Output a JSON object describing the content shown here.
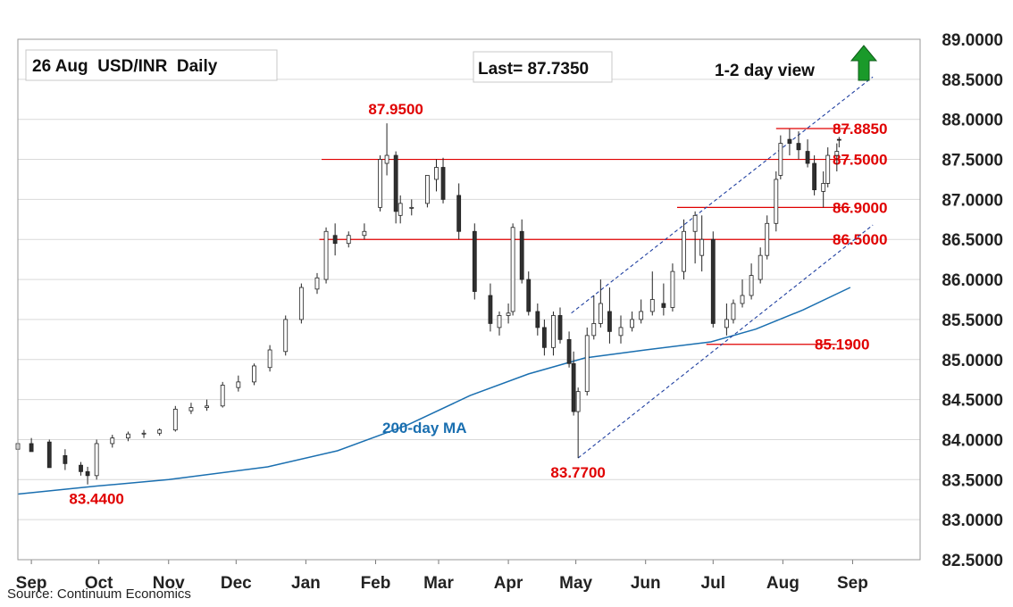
{
  "source": "Source: Continuum Economics",
  "colors": {
    "level_lines": "#e00000",
    "ma_line": "#1a6fb0",
    "channel": "#1f3fa0",
    "candle_up": "#ffffff",
    "candle_down": "#2f2f2f",
    "grid": "#d9d9d9",
    "arrow": "#1a9a2a"
  },
  "chart_data": {
    "type": "candlestick",
    "title": "26 Aug  USD/INR  Daily",
    "last_label": "Last= 87.7350",
    "view_label": "1-2 day view",
    "view_direction": "up-arrow-icon",
    "ma_label": "200-day MA",
    "ylim": [
      82.5,
      89.0
    ],
    "y_ticks": [
      "89.0000",
      "88.5000",
      "88.0000",
      "87.5000",
      "87.0000",
      "86.5000",
      "86.0000",
      "85.5000",
      "85.0000",
      "84.5000",
      "84.0000",
      "83.5000",
      "83.0000",
      "82.5000"
    ],
    "y_tick_values": [
      89.0,
      88.5,
      88.0,
      87.5,
      87.0,
      86.5,
      86.0,
      85.5,
      85.0,
      84.5,
      84.0,
      83.5,
      83.0,
      82.5
    ],
    "x_ticks": [
      "Sep",
      "Oct",
      "Nov",
      "Dec",
      "Jan",
      "Feb",
      "Mar",
      "Apr",
      "May",
      "Jun",
      "Jul",
      "Aug",
      "Sep"
    ],
    "x_tick_dates": [
      "2024-09-01",
      "2024-10-01",
      "2024-11-01",
      "2024-12-01",
      "2025-01-01",
      "2025-02-01",
      "2025-03-01",
      "2025-04-01",
      "2025-05-01",
      "2025-06-01",
      "2025-07-01",
      "2025-08-01",
      "2025-09-01"
    ],
    "x_range": [
      "2024-08-26",
      "2025-10-01"
    ],
    "levels": [
      {
        "label": "87.8850",
        "value": 87.885,
        "from": "2025-07-29",
        "to": "2025-08-31"
      },
      {
        "label": "87.5000",
        "value": 87.5,
        "from": "2025-01-08",
        "to": "2025-08-31"
      },
      {
        "label": "86.9000",
        "value": 86.9,
        "from": "2025-06-15",
        "to": "2025-08-31"
      },
      {
        "label": "86.5000",
        "value": 86.5,
        "from": "2025-01-07",
        "to": "2025-08-31"
      },
      {
        "label": "85.1900",
        "value": 85.19,
        "from": "2025-06-28",
        "to": "2025-08-25"
      }
    ],
    "annotations": [
      {
        "label": "87.9500",
        "date": "2025-02-10",
        "value": 87.95,
        "pos": "above"
      },
      {
        "label": "83.7700",
        "date": "2025-05-02",
        "value": 83.77,
        "pos": "below"
      },
      {
        "label": "83.4400",
        "date": "2024-09-30",
        "value": 83.44,
        "pos": "below"
      }
    ],
    "channel": {
      "upper": [
        {
          "date": "2025-04-29",
          "value": 85.58
        },
        {
          "date": "2025-09-10",
          "value": 88.53
        }
      ],
      "lower": [
        {
          "date": "2025-05-02",
          "value": 83.77
        },
        {
          "date": "2025-09-10",
          "value": 86.68
        }
      ]
    },
    "ma_200": {
      "dates": [
        "2024-08-26",
        "2024-09-30",
        "2024-11-01",
        "2024-12-15",
        "2025-01-15",
        "2025-02-15",
        "2025-03-15",
        "2025-04-10",
        "2025-05-05",
        "2025-06-01",
        "2025-06-30",
        "2025-07-20",
        "2025-08-10",
        "2025-08-31"
      ],
      "values": [
        83.32,
        83.42,
        83.5,
        83.66,
        83.86,
        84.18,
        84.55,
        84.82,
        85.02,
        85.12,
        85.22,
        85.38,
        85.62,
        85.9
      ]
    },
    "series": [
      {
        "dates": [
          "2024-08-26",
          "2024-09-01",
          "2024-09-09",
          "2024-09-16",
          "2024-09-23",
          "2024-09-26",
          "2024-09-30",
          "2024-10-07",
          "2024-10-14",
          "2024-10-21",
          "2024-10-28",
          "2024-11-04",
          "2024-11-11",
          "2024-11-18",
          "2024-11-25",
          "2024-12-02",
          "2024-12-09",
          "2024-12-16",
          "2024-12-23",
          "2024-12-30",
          "2025-01-06",
          "2025-01-10",
          "2025-01-14",
          "2025-01-20",
          "2025-01-27",
          "2025-02-03",
          "2025-02-06",
          "2025-02-10",
          "2025-02-12",
          "2025-02-17",
          "2025-02-24",
          "2025-02-28",
          "2025-03-03",
          "2025-03-10",
          "2025-03-17",
          "2025-03-24",
          "2025-03-28",
          "2025-04-01",
          "2025-04-03",
          "2025-04-07",
          "2025-04-10",
          "2025-04-14",
          "2025-04-17",
          "2025-04-21",
          "2025-04-24",
          "2025-04-28",
          "2025-04-30",
          "2025-05-02",
          "2025-05-06",
          "2025-05-09",
          "2025-05-12",
          "2025-05-16",
          "2025-05-21",
          "2025-05-26",
          "2025-05-30",
          "2025-06-04",
          "2025-06-09",
          "2025-06-13",
          "2025-06-18",
          "2025-06-23",
          "2025-06-26",
          "2025-07-01",
          "2025-07-07",
          "2025-07-10",
          "2025-07-14",
          "2025-07-18",
          "2025-07-22",
          "2025-07-25",
          "2025-07-29",
          "2025-07-31",
          "2025-08-04",
          "2025-08-08",
          "2025-08-12",
          "2025-08-15",
          "2025-08-19",
          "2025-08-21",
          "2025-08-25",
          "2025-08-26"
        ]
      },
      {
        "name": "open",
        "values": [
          83.88,
          83.95,
          83.97,
          83.8,
          83.68,
          83.6,
          83.55,
          83.95,
          84.02,
          84.07,
          84.08,
          84.12,
          84.36,
          84.4,
          84.42,
          84.65,
          84.72,
          84.9,
          85.1,
          85.5,
          85.88,
          86.0,
          86.55,
          86.45,
          86.55,
          86.9,
          87.45,
          87.55,
          86.8,
          86.9,
          86.95,
          87.25,
          87.4,
          87.05,
          86.6,
          85.8,
          85.4,
          85.55,
          85.6,
          86.6,
          86.0,
          85.6,
          85.4,
          85.15,
          85.55,
          85.25,
          84.95,
          84.35,
          84.6,
          85.3,
          85.45,
          85.6,
          85.3,
          85.4,
          85.5,
          85.6,
          85.7,
          85.65,
          86.1,
          86.6,
          86.3,
          86.5,
          85.4,
          85.5,
          85.7,
          85.8,
          86.0,
          86.3,
          86.7,
          87.3,
          87.75,
          87.7,
          87.6,
          87.45,
          87.1,
          87.2,
          87.55,
          87.75
        ]
      },
      {
        "name": "high",
        "values": [
          83.98,
          84.02,
          84.0,
          83.88,
          83.72,
          83.66,
          84.0,
          84.06,
          84.1,
          84.12,
          84.14,
          84.42,
          84.46,
          84.5,
          84.72,
          84.8,
          84.95,
          85.18,
          85.55,
          85.95,
          86.08,
          86.65,
          86.7,
          86.6,
          86.7,
          87.55,
          87.95,
          87.6,
          87.05,
          87.0,
          87.3,
          87.5,
          87.52,
          87.2,
          86.7,
          85.95,
          85.6,
          85.7,
          86.7,
          86.75,
          86.1,
          85.7,
          85.5,
          85.6,
          85.65,
          85.35,
          85.1,
          84.65,
          85.4,
          85.8,
          86.0,
          85.9,
          85.55,
          85.6,
          85.75,
          86.1,
          85.95,
          86.2,
          86.75,
          86.85,
          86.8,
          86.6,
          85.7,
          85.75,
          86.0,
          86.2,
          86.4,
          86.8,
          87.35,
          87.8,
          87.88,
          87.85,
          87.75,
          87.55,
          87.35,
          87.65,
          87.7,
          87.78
        ]
      },
      {
        "name": "low",
        "values": [
          83.82,
          83.88,
          83.75,
          83.62,
          83.55,
          83.44,
          83.5,
          83.9,
          83.98,
          84.02,
          84.05,
          84.1,
          84.32,
          84.36,
          84.4,
          84.6,
          84.68,
          84.85,
          85.05,
          85.45,
          85.82,
          85.95,
          86.3,
          86.4,
          86.5,
          86.85,
          87.3,
          86.7,
          86.7,
          86.8,
          86.9,
          87.1,
          86.95,
          86.5,
          85.75,
          85.35,
          85.3,
          85.45,
          85.55,
          85.95,
          85.55,
          85.3,
          85.05,
          85.05,
          85.2,
          84.9,
          84.3,
          83.77,
          84.55,
          85.25,
          85.4,
          85.2,
          85.2,
          85.35,
          85.45,
          85.55,
          85.55,
          85.6,
          86.0,
          86.2,
          86.1,
          85.4,
          85.3,
          85.45,
          85.65,
          85.75,
          85.95,
          86.25,
          86.6,
          87.25,
          87.55,
          87.5,
          87.4,
          87.05,
          86.9,
          87.15,
          87.35,
          87.65
        ]
      },
      {
        "name": "close",
        "values": [
          83.95,
          83.85,
          83.65,
          83.7,
          83.6,
          83.55,
          83.95,
          84.02,
          84.07,
          84.08,
          84.12,
          84.38,
          84.4,
          84.42,
          84.68,
          84.72,
          84.92,
          85.12,
          85.5,
          85.9,
          86.02,
          86.6,
          86.45,
          86.55,
          86.6,
          87.5,
          87.55,
          86.85,
          86.95,
          86.9,
          87.3,
          87.4,
          87.0,
          86.6,
          85.85,
          85.45,
          85.55,
          85.58,
          86.65,
          86.0,
          85.6,
          85.4,
          85.15,
          85.55,
          85.25,
          84.95,
          84.35,
          84.6,
          85.3,
          85.45,
          85.7,
          85.35,
          85.4,
          85.5,
          85.6,
          85.75,
          85.65,
          86.1,
          86.6,
          86.8,
          86.5,
          85.45,
          85.5,
          85.7,
          85.8,
          86.05,
          86.3,
          86.7,
          87.25,
          87.7,
          87.7,
          87.62,
          87.45,
          87.12,
          87.2,
          87.55,
          87.6,
          87.74
        ]
      }
    ]
  }
}
